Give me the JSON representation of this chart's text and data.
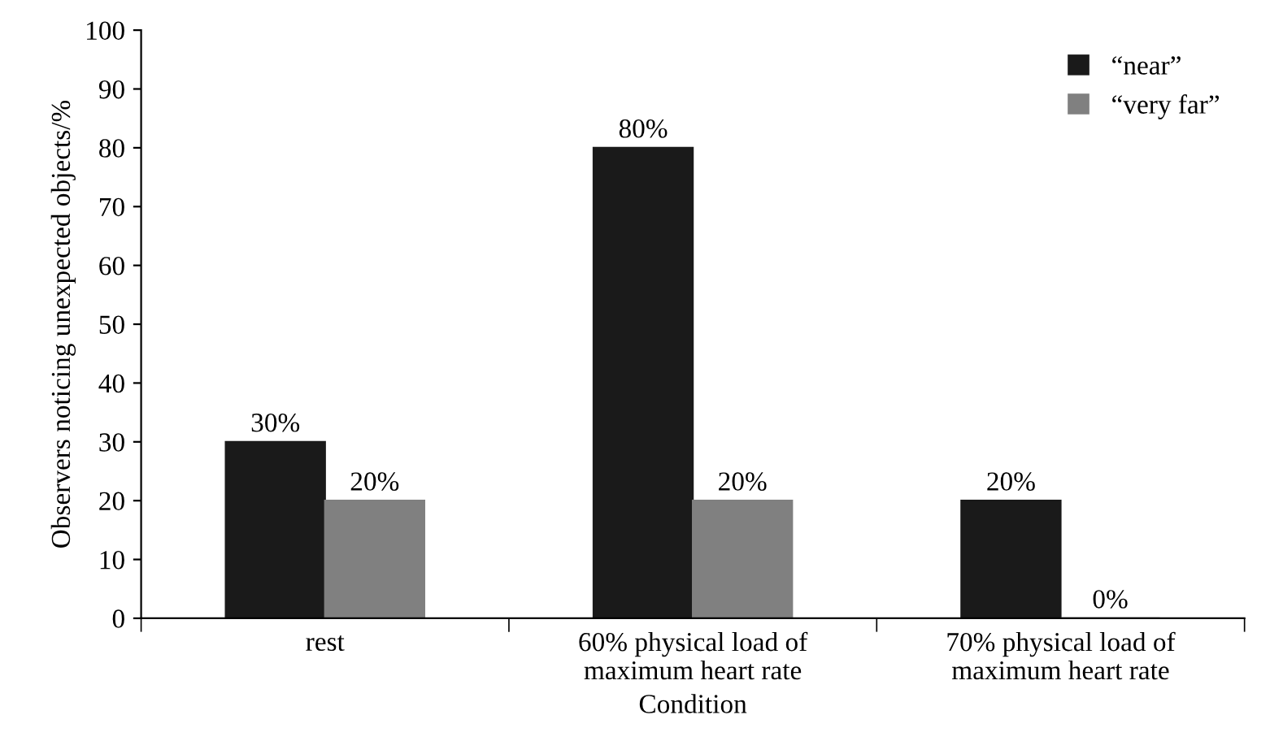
{
  "chart_data": {
    "type": "bar",
    "xlabel": "Condition",
    "ylabel": "Observers noticing unexpected objects/%",
    "categories": [
      "rest",
      "60% physical load of\nmaximum heart rate",
      "70% physical load of\nmaximum heart rate"
    ],
    "series": [
      {
        "name": "“near”",
        "color": "#1a1a1a",
        "values": [
          30,
          80,
          20
        ],
        "value_labels": [
          "30%",
          "80%",
          "20%"
        ]
      },
      {
        "name": "“very far”",
        "color": "#808080",
        "values": [
          20,
          20,
          0
        ],
        "value_labels": [
          "20%",
          "20%",
          "0%"
        ]
      }
    ],
    "ylim": [
      0,
      100
    ],
    "yticks": [
      0,
      10,
      20,
      30,
      40,
      50,
      60,
      70,
      80,
      90,
      100
    ],
    "grid": false,
    "legend": "top right"
  }
}
